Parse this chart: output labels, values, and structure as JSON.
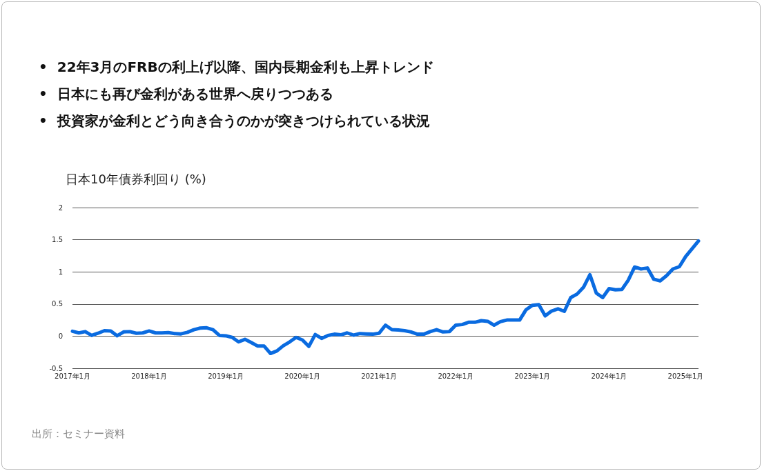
{
  "chart_data": {
    "type": "line",
    "title": "日本10年債券利回り (%)",
    "annotations": [
      "•  22年3月のFRBの利上げ以降、国内長期金利も上昇トレンド",
      "•  日本にも再び金利がある世界へ戻りつつある",
      "•  投資家が金利とどう向き合うのかが突きつけられている状況",
      "出所：セミナー資料"
    ],
    "categories": [
      "2017年1月",
      null,
      null,
      null,
      null,
      null,
      null,
      null,
      null,
      null,
      null,
      null,
      "2018年1月",
      null,
      null,
      null,
      null,
      null,
      null,
      null,
      null,
      null,
      null,
      null,
      "2019年1月",
      null,
      null,
      null,
      null,
      null,
      null,
      null,
      null,
      null,
      null,
      null,
      "2020年1月",
      null,
      null,
      null,
      null,
      null,
      null,
      null,
      null,
      null,
      null,
      null,
      "2021年1月",
      null,
      null,
      null,
      null,
      null,
      null,
      null,
      null,
      null,
      null,
      null,
      "2022年1月",
      null,
      null,
      null,
      null,
      null,
      null,
      null,
      null,
      null,
      null,
      null,
      "2023年1月",
      null,
      null,
      null,
      null,
      null,
      null,
      null,
      null,
      null,
      null,
      null,
      "2024年1月",
      null,
      null,
      null,
      null,
      null,
      null,
      null,
      null,
      null,
      null,
      null,
      "2025年1月",
      null,
      null
    ],
    "series": [
      {
        "color": "#0a6be0",
        "values": [
          0.075,
          0.05,
          0.07,
          0.01,
          0.045,
          0.085,
          0.08,
          0.005,
          0.065,
          0.07,
          0.045,
          0.05,
          0.08,
          0.05,
          0.05,
          0.055,
          0.04,
          0.035,
          0.06,
          0.1,
          0.125,
          0.13,
          0.1,
          0.01,
          0.005,
          -0.02,
          -0.09,
          -0.05,
          -0.1,
          -0.155,
          -0.155,
          -0.27,
          -0.23,
          -0.15,
          -0.09,
          -0.02,
          -0.06,
          -0.16,
          0.025,
          -0.035,
          0.01,
          0.03,
          0.02,
          0.05,
          0.015,
          0.04,
          0.035,
          0.03,
          0.045,
          0.17,
          0.1,
          0.095,
          0.085,
          0.065,
          0.03,
          0.03,
          0.07,
          0.1,
          0.065,
          0.07,
          0.17,
          0.18,
          0.215,
          0.215,
          0.24,
          0.23,
          0.17,
          0.225,
          0.25,
          0.25,
          0.25,
          0.41,
          0.48,
          0.49,
          0.315,
          0.39,
          0.425,
          0.385,
          0.6,
          0.655,
          0.76,
          0.955,
          0.67,
          0.6,
          0.74,
          0.72,
          0.725,
          0.87,
          1.075,
          1.045,
          1.06,
          0.885,
          0.86,
          0.94,
          1.045,
          1.08,
          1.24,
          1.36,
          1.48
        ]
      }
    ],
    "ylim": [
      -0.5,
      2
    ],
    "yticks": [
      -0.5,
      0,
      0.5,
      1,
      1.5,
      2
    ],
    "grid": "y",
    "marker": "none",
    "line_style": "solid"
  }
}
